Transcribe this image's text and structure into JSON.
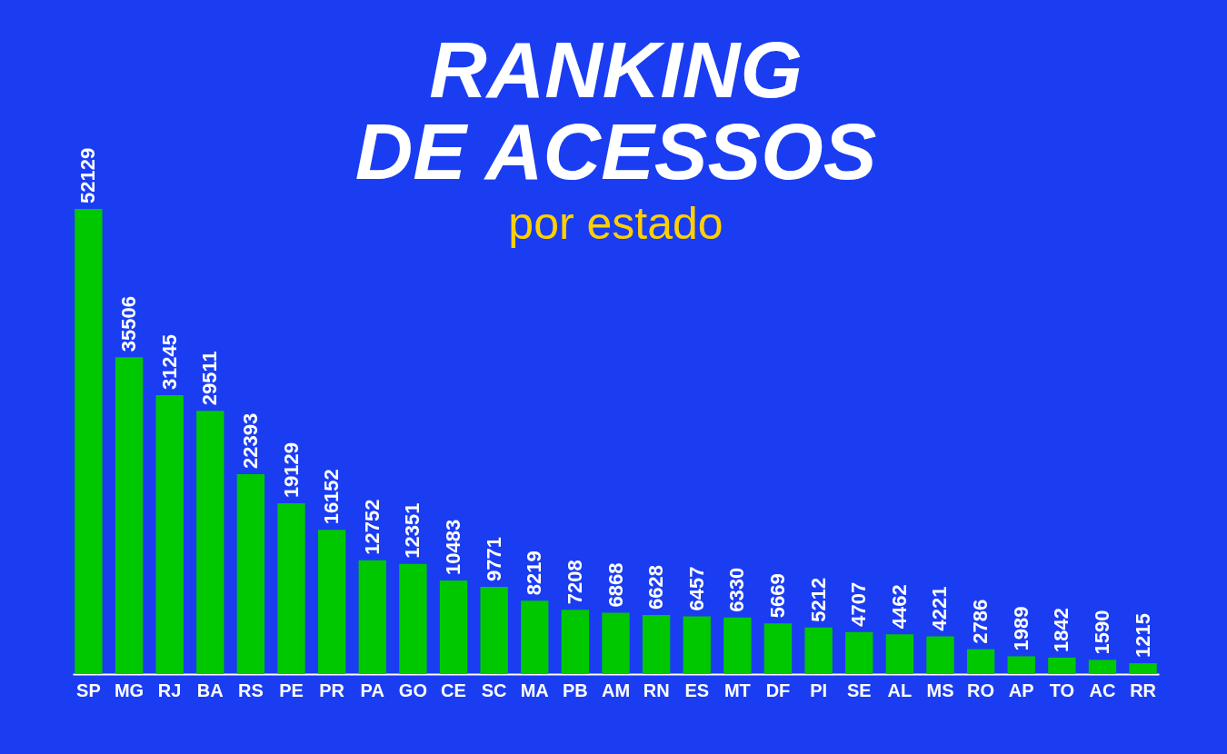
{
  "chart_data": {
    "type": "bar",
    "title": "RANKING DE ACESSOS",
    "subtitle": "por estado",
    "categories": [
      "SP",
      "MG",
      "RJ",
      "BA",
      "RS",
      "PE",
      "PR",
      "PA",
      "GO",
      "CE",
      "SC",
      "MA",
      "PB",
      "AM",
      "RN",
      "ES",
      "MT",
      "DF",
      "PI",
      "SE",
      "AL",
      "MS",
      "RO",
      "AP",
      "TO",
      "AC",
      "RR"
    ],
    "values": [
      52129,
      35506,
      31245,
      29511,
      22393,
      19129,
      16152,
      12752,
      12351,
      10483,
      9771,
      8219,
      7208,
      6868,
      6628,
      6457,
      6330,
      5669,
      5212,
      4707,
      4462,
      4221,
      2786,
      1989,
      1842,
      1590,
      1215
    ],
    "color": "#00c800",
    "data_labels": true
  }
}
